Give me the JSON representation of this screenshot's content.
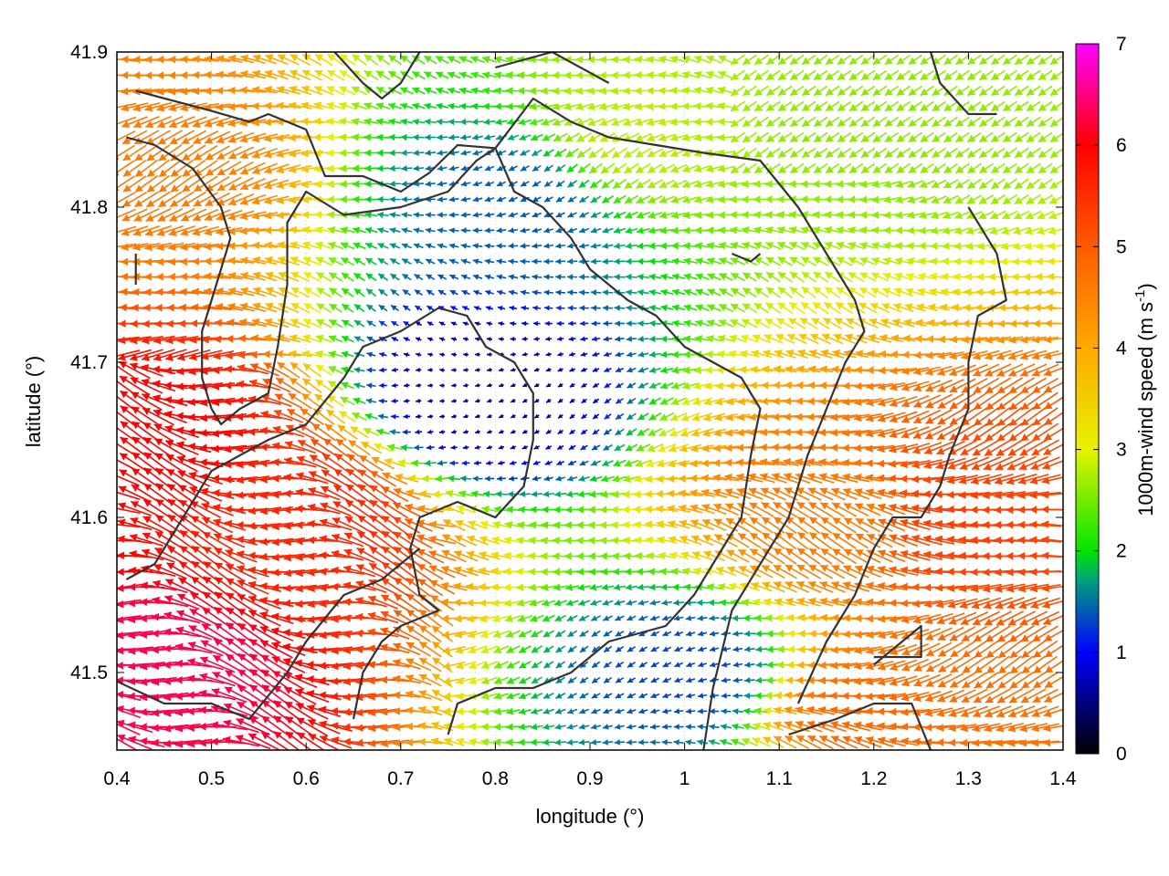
{
  "chart_data": {
    "type": "vector-field",
    "title": "",
    "xlabel": "longitude (°)",
    "ylabel": "latitude (°)",
    "xlim": [
      0.4,
      1.4
    ],
    "ylim": [
      41.45,
      41.9
    ],
    "xticks": [
      "0.4",
      "0.5",
      "0.6",
      "0.7",
      "0.8",
      "0.9",
      "1",
      "1.1",
      "1.2",
      "1.3",
      "1.4"
    ],
    "xtick_values": [
      0.4,
      0.5,
      0.6,
      0.7,
      0.8,
      0.9,
      1.0,
      1.1,
      1.2,
      1.3,
      1.4
    ],
    "yticks": [
      "41.5",
      "41.6",
      "41.7",
      "41.8",
      "41.9"
    ],
    "ytick_values": [
      41.5,
      41.6,
      41.7,
      41.8,
      41.9
    ],
    "colorbar": {
      "label_main": "1000m-wind speed (m s",
      "label_sup": "-1",
      "label_end": ")",
      "range": [
        0,
        7
      ],
      "ticks": [
        "0",
        "1",
        "2",
        "3",
        "4",
        "5",
        "6",
        "7"
      ],
      "tick_values": [
        0,
        1,
        2,
        3,
        4,
        5,
        6,
        7
      ],
      "stops": [
        {
          "v": 0.0,
          "color": "#000000"
        },
        {
          "v": 1.0,
          "color": "#0000ff"
        },
        {
          "v": 1.7,
          "color": "#009f7f"
        },
        {
          "v": 2.0,
          "color": "#00e600"
        },
        {
          "v": 3.0,
          "color": "#e6f200"
        },
        {
          "v": 4.0,
          "color": "#ffaa00"
        },
        {
          "v": 5.0,
          "color": "#ff5a00"
        },
        {
          "v": 6.0,
          "color": "#ff0000"
        },
        {
          "v": 7.0,
          "color": "#ff00ff"
        }
      ]
    },
    "grid": "dotted",
    "vectors": {
      "grid_spacing_lon": 0.0125,
      "grid_spacing_lat": 0.01,
      "description": "wind arrows coloured by 1000m wind speed",
      "speed_field_samples": [
        {
          "lon": 0.45,
          "lat": 41.5,
          "speed": 6.3
        },
        {
          "lon": 0.45,
          "lat": 41.65,
          "speed": 6.0
        },
        {
          "lon": 0.43,
          "lat": 41.82,
          "speed": 4.6
        },
        {
          "lon": 0.6,
          "lat": 41.6,
          "speed": 5.6
        },
        {
          "lon": 0.78,
          "lat": 41.68,
          "speed": 0.6
        },
        {
          "lon": 0.82,
          "lat": 41.8,
          "speed": 1.4
        },
        {
          "lon": 1.15,
          "lat": 41.6,
          "speed": 4.6
        },
        {
          "lon": 1.3,
          "lat": 41.6,
          "speed": 5.3
        },
        {
          "lon": 0.95,
          "lat": 41.85,
          "speed": 2.8
        },
        {
          "lon": 1.2,
          "lat": 41.85,
          "speed": 2.6
        },
        {
          "lon": 1.0,
          "lat": 41.5,
          "speed": 1.3
        },
        {
          "lon": 1.2,
          "lat": 41.47,
          "speed": 4.8
        }
      ]
    },
    "contours": [
      [
        [
          0.42,
          41.875
        ],
        [
          0.5,
          41.862
        ],
        [
          0.54,
          41.855
        ],
        [
          0.56,
          41.86
        ],
        [
          0.6,
          41.85
        ],
        [
          0.62,
          41.82
        ],
        [
          0.66,
          41.82
        ],
        [
          0.7,
          41.81
        ],
        [
          0.73,
          41.822
        ],
        [
          0.76,
          41.84
        ],
        [
          0.8,
          41.838
        ],
        [
          0.84,
          41.87
        ],
        [
          0.88,
          41.855
        ],
        [
          0.92,
          41.845
        ],
        [
          0.97,
          41.84
        ],
        [
          1.02,
          41.835
        ],
        [
          1.08,
          41.83
        ],
        [
          1.12,
          41.8
        ],
        [
          1.15,
          41.77
        ],
        [
          1.18,
          41.74
        ],
        [
          1.19,
          41.72
        ],
        [
          1.17,
          41.7
        ],
        [
          1.15,
          41.67
        ],
        [
          1.13,
          41.64
        ],
        [
          1.11,
          41.6
        ],
        [
          1.08,
          41.57
        ],
        [
          1.05,
          41.54
        ],
        [
          1.03,
          41.49
        ],
        [
          1.02,
          41.45
        ]
      ],
      [
        [
          0.41,
          41.845
        ],
        [
          0.44,
          41.84
        ],
        [
          0.48,
          41.825
        ],
        [
          0.51,
          41.8
        ],
        [
          0.52,
          41.78
        ],
        [
          0.51,
          41.76
        ],
        [
          0.5,
          41.74
        ],
        [
          0.49,
          41.72
        ],
        [
          0.49,
          41.69
        ],
        [
          0.5,
          41.67
        ],
        [
          0.51,
          41.66
        ],
        [
          0.53,
          41.67
        ],
        [
          0.56,
          41.68
        ],
        [
          0.57,
          41.71
        ],
        [
          0.58,
          41.75
        ],
        [
          0.58,
          41.79
        ],
        [
          0.6,
          41.81
        ],
        [
          0.64,
          41.795
        ],
        [
          0.7,
          41.8
        ],
        [
          0.75,
          41.81
        ],
        [
          0.78,
          41.83
        ],
        [
          0.8,
          41.838
        ],
        [
          0.82,
          41.81
        ],
        [
          0.85,
          41.8
        ],
        [
          0.88,
          41.78
        ],
        [
          0.9,
          41.76
        ],
        [
          0.92,
          41.75
        ],
        [
          0.94,
          41.74
        ],
        [
          0.97,
          41.73
        ],
        [
          1.0,
          41.71
        ],
        [
          1.03,
          41.7
        ],
        [
          1.06,
          41.69
        ],
        [
          1.08,
          41.67
        ],
        [
          1.07,
          41.64
        ],
        [
          1.06,
          41.6
        ],
        [
          1.04,
          41.58
        ],
        [
          1.01,
          41.55
        ],
        [
          0.98,
          41.53
        ],
        [
          0.92,
          41.52
        ],
        [
          0.88,
          41.5
        ],
        [
          0.84,
          41.49
        ],
        [
          0.8,
          41.49
        ],
        [
          0.76,
          41.48
        ],
        [
          0.75,
          41.46
        ]
      ],
      [
        [
          0.41,
          41.56
        ],
        [
          0.44,
          41.57
        ],
        [
          0.47,
          41.6
        ],
        [
          0.5,
          41.63
        ],
        [
          0.53,
          41.64
        ],
        [
          0.56,
          41.65
        ],
        [
          0.6,
          41.66
        ],
        [
          0.64,
          41.69
        ],
        [
          0.66,
          41.71
        ],
        [
          0.7,
          41.72
        ],
        [
          0.74,
          41.735
        ],
        [
          0.77,
          41.73
        ],
        [
          0.79,
          41.71
        ],
        [
          0.82,
          41.7
        ],
        [
          0.84,
          41.68
        ],
        [
          0.84,
          41.65
        ],
        [
          0.83,
          41.62
        ],
        [
          0.8,
          41.6
        ],
        [
          0.76,
          41.61
        ],
        [
          0.72,
          41.6
        ],
        [
          0.71,
          41.58
        ],
        [
          0.72,
          41.55
        ],
        [
          0.74,
          41.54
        ],
        [
          0.7,
          41.53
        ],
        [
          0.68,
          41.52
        ],
        [
          0.66,
          41.5
        ],
        [
          0.65,
          41.47
        ]
      ],
      [
        [
          0.38,
          41.5
        ],
        [
          0.45,
          41.48
        ],
        [
          0.5,
          41.48
        ],
        [
          0.54,
          41.47
        ],
        [
          0.58,
          41.5
        ],
        [
          0.6,
          41.52
        ],
        [
          0.64,
          41.55
        ],
        [
          0.68,
          41.56
        ],
        [
          0.72,
          41.58
        ]
      ],
      [
        [
          1.11,
          41.46
        ],
        [
          1.16,
          41.47
        ],
        [
          1.2,
          41.48
        ],
        [
          1.24,
          41.48
        ],
        [
          1.26,
          41.45
        ]
      ],
      [
        [
          1.2,
          41.51
        ],
        [
          1.23,
          41.51
        ],
        [
          1.25,
          41.51
        ],
        [
          1.25,
          41.53
        ],
        [
          1.23,
          41.52
        ],
        [
          1.2,
          41.505
        ]
      ],
      [
        [
          1.26,
          41.9
        ],
        [
          1.27,
          41.88
        ],
        [
          1.3,
          41.86
        ],
        [
          1.33,
          41.86
        ]
      ],
      [
        [
          1.3,
          41.8
        ],
        [
          1.33,
          41.77
        ],
        [
          1.34,
          41.74
        ],
        [
          1.31,
          41.73
        ],
        [
          1.3,
          41.7
        ],
        [
          1.3,
          41.67
        ],
        [
          1.28,
          41.64
        ],
        [
          1.27,
          41.62
        ],
        [
          1.25,
          41.6
        ],
        [
          1.22,
          41.6
        ],
        [
          1.2,
          41.58
        ],
        [
          1.18,
          41.55
        ],
        [
          1.15,
          41.52
        ],
        [
          1.12,
          41.48
        ]
      ],
      [
        [
          0.42,
          41.77
        ],
        [
          0.42,
          41.75
        ]
      ],
      [
        [
          0.63,
          41.9
        ],
        [
          0.66,
          41.88
        ],
        [
          0.68,
          41.87
        ],
        [
          0.7,
          41.88
        ],
        [
          0.72,
          41.9
        ]
      ],
      [
        [
          0.8,
          41.89
        ],
        [
          0.86,
          41.9
        ],
        [
          0.92,
          41.88
        ]
      ],
      [
        [
          1.05,
          41.77
        ],
        [
          1.07,
          41.765
        ],
        [
          1.08,
          41.77
        ]
      ]
    ]
  }
}
